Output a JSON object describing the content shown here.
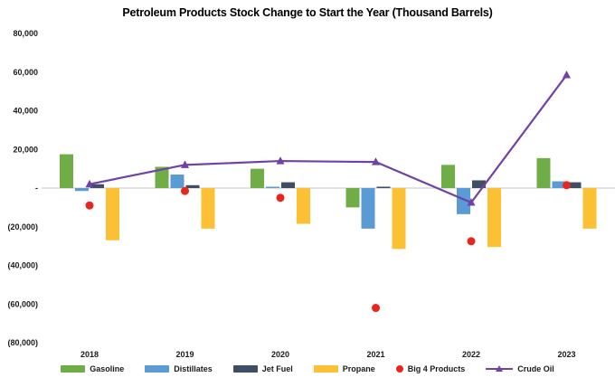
{
  "chart_data": {
    "type": "combo",
    "title": "Petroleum Products Stock Change to Start the Year (Thousand Barrels)",
    "categories": [
      "2018",
      "2019",
      "2020",
      "2021",
      "2022",
      "2023"
    ],
    "series": [
      {
        "name": "Gasoline",
        "type": "bar",
        "color": "#70AD47",
        "values": [
          17500,
          11000,
          10000,
          -10000,
          12000,
          15500
        ]
      },
      {
        "name": "Distillates",
        "type": "bar",
        "color": "#5B9BD5",
        "values": [
          -1500,
          7000,
          700,
          -21000,
          -13500,
          3500
        ]
      },
      {
        "name": "Jet Fuel",
        "type": "bar",
        "color": "#3F4E63",
        "values": [
          2000,
          1500,
          3000,
          700,
          4000,
          3000
        ]
      },
      {
        "name": "Propane",
        "type": "bar",
        "color": "#FBC034",
        "values": [
          -27000,
          -21000,
          -18500,
          -31500,
          -30500,
          -21000
        ]
      },
      {
        "name": "Big 4 Products",
        "type": "scatter",
        "color": "#E8261D",
        "values": [
          -9000,
          -1500,
          -5000,
          -62000,
          -27500,
          1500
        ]
      },
      {
        "name": "Crude Oil",
        "type": "line",
        "color": "#7142A5",
        "values": [
          2000,
          12000,
          14000,
          13500,
          -7500,
          58500
        ]
      }
    ],
    "ylim": [
      -80000,
      80000
    ],
    "ytick_step": 20000,
    "yticks": [
      {
        "value": 80000,
        "label": "80,000"
      },
      {
        "value": 60000,
        "label": "60,000"
      },
      {
        "value": 40000,
        "label": "40,000"
      },
      {
        "value": 20000,
        "label": "20,000"
      },
      {
        "value": 0,
        "label": "-"
      },
      {
        "value": -20000,
        "label": "(20,000)"
      },
      {
        "value": -40000,
        "label": "(40,000)"
      },
      {
        "value": -60000,
        "label": "(60,000)"
      },
      {
        "value": -80000,
        "label": "(80,000)"
      }
    ],
    "axis_line_color": "#D9D9D9",
    "legend_position": "bottom",
    "grid": false
  }
}
